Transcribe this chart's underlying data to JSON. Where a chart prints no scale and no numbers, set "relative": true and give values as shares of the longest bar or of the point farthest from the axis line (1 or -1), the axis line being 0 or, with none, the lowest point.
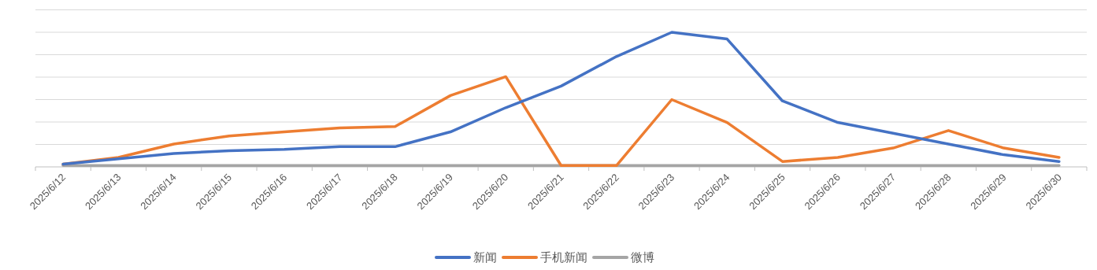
{
  "chart_data": {
    "type": "line",
    "relative": true,
    "grid": "y",
    "legend": "bottom",
    "line_style": "solid",
    "categories": [
      "2025/6/12",
      "2025/6/13",
      "2025/6/14",
      "2025/6/15",
      "2025/6/16",
      "2025/6/17",
      "2025/6/18",
      "2025/6/19",
      "2025/6/20",
      "2025/6/21",
      "2025/6/22",
      "2025/6/23",
      "2025/6/24",
      "2025/6/25",
      "2025/6/26",
      "2025/6/27",
      "2025/6/28",
      "2025/6/29",
      "2025/6/30"
    ],
    "series": [
      {
        "name": "新闻",
        "color": "#4472c4",
        "values": [
          0.02,
          0.06,
          0.1,
          0.12,
          0.13,
          0.15,
          0.15,
          0.26,
          0.44,
          0.6,
          0.82,
          1,
          0.95,
          0.49,
          0.33,
          0.25,
          0.17,
          0.09,
          0.04
        ]
      },
      {
        "name": "手机新闻",
        "color": "#ed7d31",
        "values": [
          0.02,
          0.07,
          0.17,
          0.23,
          0.26,
          0.29,
          0.3,
          0.53,
          0.67,
          0.01,
          0.01,
          0.5,
          0.33,
          0.04,
          0.07,
          0.14,
          0.27,
          0.14,
          0.07
        ]
      },
      {
        "name": "微博",
        "color": "#a5a5a5",
        "values": [
          0.01,
          0.01,
          0.01,
          0.01,
          0.01,
          0.01,
          0.01,
          0.01,
          0.01,
          0.01,
          0.01,
          0.01,
          0.01,
          0.01,
          0.01,
          0.01,
          0.01,
          0.01,
          0.01
        ]
      }
    ]
  }
}
